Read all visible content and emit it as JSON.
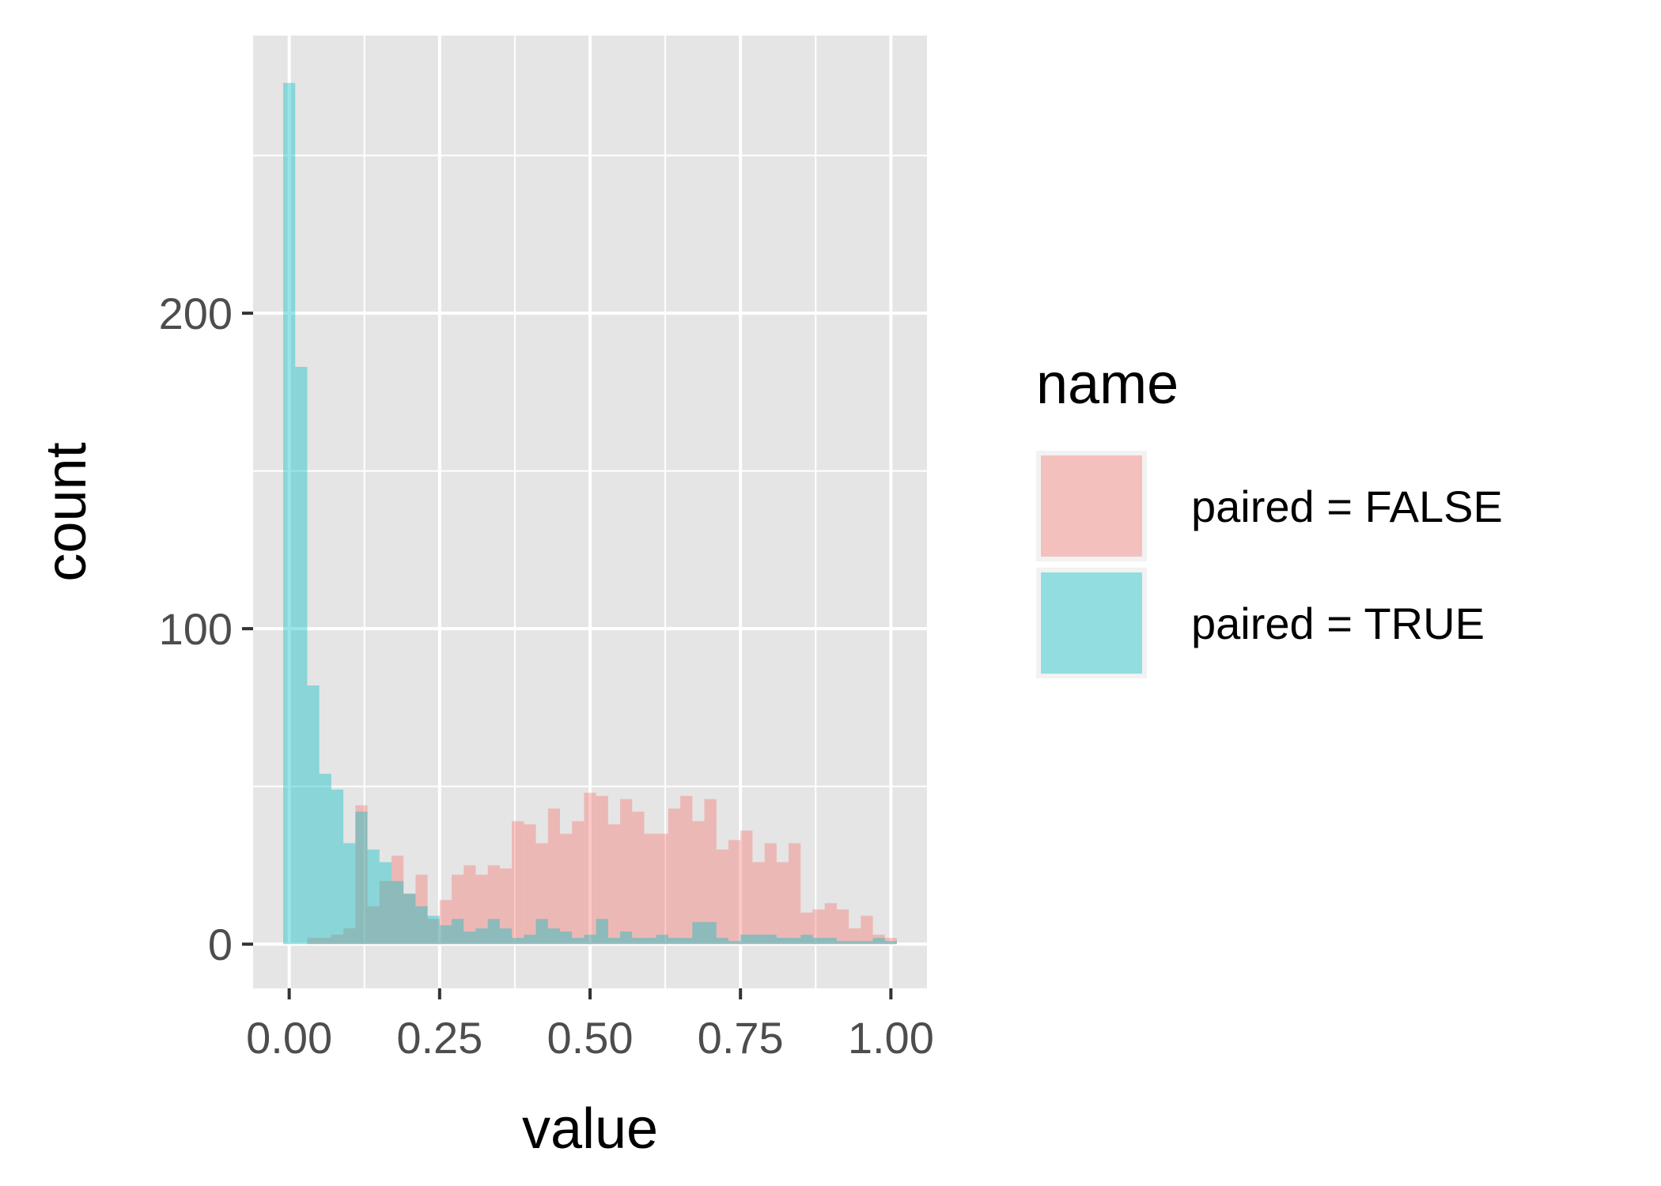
{
  "chart_data": {
    "type": "histogram",
    "xlabel": "value",
    "ylabel": "count",
    "x_ticks": [
      0.0,
      0.25,
      0.5,
      0.75,
      1.0
    ],
    "x_tick_labels": [
      "0.00",
      "0.25",
      "0.50",
      "0.75",
      "1.00"
    ],
    "y_ticks": [
      0,
      100,
      200
    ],
    "y_tick_labels": [
      "0",
      "100",
      "200"
    ],
    "xlim": [
      -0.06,
      1.06
    ],
    "ylim": [
      -14,
      288
    ],
    "bin_width": 0.02,
    "bin_starts": [
      -0.01,
      0.01,
      0.03,
      0.05,
      0.07,
      0.09,
      0.11,
      0.13,
      0.15,
      0.17,
      0.19,
      0.21,
      0.23,
      0.25,
      0.27,
      0.29,
      0.31,
      0.33,
      0.35,
      0.37,
      0.39,
      0.41,
      0.43,
      0.45,
      0.47,
      0.49,
      0.51,
      0.53,
      0.55,
      0.57,
      0.59,
      0.61,
      0.63,
      0.65,
      0.67,
      0.69,
      0.71,
      0.73,
      0.75,
      0.77,
      0.79,
      0.81,
      0.83,
      0.85,
      0.87,
      0.89,
      0.91,
      0.93,
      0.95,
      0.97,
      0.99
    ],
    "series": [
      {
        "name": "paired = FALSE",
        "color": "#F8766D",
        "values": [
          0,
          0,
          2,
          2,
          3,
          5,
          44,
          12,
          20,
          28,
          16,
          22,
          8,
          14,
          22,
          25,
          22,
          25,
          24,
          39,
          38,
          32,
          43,
          35,
          39,
          48,
          47,
          38,
          46,
          42,
          35,
          35,
          43,
          47,
          39,
          46,
          30,
          33,
          36,
          26,
          32,
          26,
          32,
          10,
          11,
          13,
          11,
          5,
          9,
          3,
          2
        ]
      },
      {
        "name": "paired = TRUE",
        "color": "#00BFC4",
        "values": [
          273,
          183,
          82,
          54,
          49,
          32,
          42,
          30,
          26,
          20,
          16,
          12,
          9,
          6,
          8,
          4,
          5,
          8,
          5,
          2,
          3,
          8,
          5,
          4,
          2,
          3,
          8,
          2,
          4,
          2,
          2,
          3,
          2,
          2,
          7,
          7,
          2,
          1,
          3,
          3,
          3,
          2,
          2,
          3,
          2,
          2,
          1,
          1,
          1,
          2,
          1
        ]
      }
    ],
    "legend": {
      "title": "name",
      "position": "right",
      "entries": [
        "paired = FALSE",
        "paired = TRUE"
      ]
    },
    "grid": true,
    "panel_background": "#E5E5E5",
    "fill_alpha": 0.4
  }
}
